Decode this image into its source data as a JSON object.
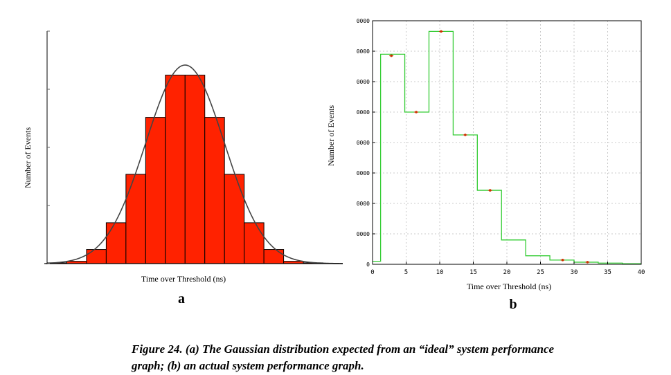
{
  "chart_data": [
    {
      "type": "bar",
      "panel_label": "a",
      "xlabel": "Time over Threshold (ns)",
      "ylabel": "Number of Events",
      "bins": [
        {
          "x0": -7,
          "x1": -6,
          "value": 0.4
        },
        {
          "x0": -6,
          "x1": -5,
          "value": 1.2
        },
        {
          "x0": -5,
          "x1": -4,
          "value": 7.3
        },
        {
          "x0": -4,
          "x1": -3,
          "value": 21.1
        },
        {
          "x0": -3,
          "x1": -2,
          "value": 46.1
        },
        {
          "x0": -2,
          "x1": -1,
          "value": 75.5
        },
        {
          "x0": -1,
          "x1": 0,
          "value": 97.3
        },
        {
          "x0": 0,
          "x1": 1,
          "value": 97.3
        },
        {
          "x0": 1,
          "x1": 2,
          "value": 75.5
        },
        {
          "x0": 2,
          "x1": 3,
          "value": 46.1
        },
        {
          "x0": 3,
          "x1": 4,
          "value": 21.1
        },
        {
          "x0": 4,
          "x1": 5,
          "value": 7.3
        },
        {
          "x0": 5,
          "x1": 6,
          "value": 1.2
        },
        {
          "x0": 6,
          "x1": 7,
          "value": 0.4
        }
      ],
      "curve": {
        "kind": "gaussian",
        "peak": 102.5,
        "mean": 0,
        "sigma": 2
      },
      "xlim": [
        -7,
        8
      ],
      "ylim": [
        0,
        120
      ],
      "colors": {
        "bar_fill": "#ff2200",
        "bar_edge": "#000000",
        "curve": "#444444",
        "axis": "#000000"
      }
    },
    {
      "type": "step",
      "panel_label": "b",
      "xlabel": "Time over Threshold (ns)",
      "ylabel": "Number of Events",
      "x_ticks": [
        "0",
        "5",
        "10",
        "15",
        "20",
        "25",
        "30",
        "35",
        "40"
      ],
      "y_ticks": [
        "0",
        "0000",
        "0000",
        "0000",
        "0000",
        "0000",
        "0000",
        "0000",
        "0000"
      ],
      "bins": [
        {
          "x0": 0.0,
          "x1": 1.2,
          "value": 0.1
        },
        {
          "x0": 1.2,
          "x1": 4.8,
          "value": 6.9
        },
        {
          "x0": 4.8,
          "x1": 8.4,
          "value": 5.0
        },
        {
          "x0": 8.4,
          "x1": 12.0,
          "value": 7.65
        },
        {
          "x0": 12.0,
          "x1": 15.6,
          "value": 4.25
        },
        {
          "x0": 15.6,
          "x1": 19.2,
          "value": 2.43
        },
        {
          "x0": 19.2,
          "x1": 22.8,
          "value": 0.8
        },
        {
          "x0": 22.8,
          "x1": 26.4,
          "value": 0.28
        },
        {
          "x0": 26.4,
          "x1": 30.0,
          "value": 0.14
        },
        {
          "x0": 30.0,
          "x1": 33.6,
          "value": 0.07
        },
        {
          "x0": 33.6,
          "x1": 37.2,
          "value": 0.04
        },
        {
          "x0": 37.2,
          "x1": 40.0,
          "value": 0.02
        }
      ],
      "points": [
        {
          "x": 2.8,
          "y": 6.85
        },
        {
          "x": 6.5,
          "y": 5.0
        },
        {
          "x": 10.2,
          "y": 7.65
        },
        {
          "x": 13.8,
          "y": 4.25
        },
        {
          "x": 17.5,
          "y": 2.43
        },
        {
          "x": 28.3,
          "y": 0.14
        },
        {
          "x": 32.0,
          "y": 0.07
        }
      ],
      "xlim": [
        0,
        40
      ],
      "ylim": [
        0,
        8
      ],
      "grid": "dashed",
      "colors": {
        "step": "#33cc33",
        "point": "#cc3300",
        "grid": "#bbbbbb",
        "frame": "#000000"
      }
    }
  ],
  "caption": {
    "line1": "Figure 24. (a) The Gaussian distribution expected from an “ideal” system performance",
    "line2": "graph; (b) an actual system performance graph."
  }
}
